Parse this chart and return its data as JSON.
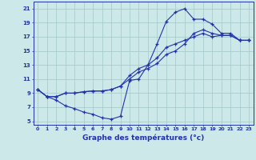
{
  "bg_color": "#cce8e8",
  "grid_color": "#aacccc",
  "line_color": "#2233aa",
  "xlabel": "Graphe des températures (°c)",
  "xlim": [
    -0.5,
    23.5
  ],
  "ylim": [
    4.5,
    22
  ],
  "yticks": [
    5,
    7,
    9,
    11,
    13,
    15,
    17,
    19,
    21
  ],
  "xticks": [
    0,
    1,
    2,
    3,
    4,
    5,
    6,
    7,
    8,
    9,
    10,
    11,
    12,
    13,
    14,
    15,
    16,
    17,
    18,
    19,
    20,
    21,
    22,
    23
  ],
  "series1_x": [
    0,
    1,
    2,
    3,
    4,
    5,
    6,
    7,
    8,
    9,
    10,
    11,
    12,
    13,
    14,
    15,
    16,
    17,
    18,
    19,
    20,
    21,
    22,
    23
  ],
  "series1_y": [
    9.5,
    8.5,
    8.0,
    7.2,
    6.8,
    6.3,
    6.0,
    5.5,
    5.3,
    5.7,
    10.8,
    11.0,
    13.0,
    16.0,
    19.2,
    20.5,
    21.0,
    19.5,
    19.5,
    18.8,
    17.5,
    17.5,
    16.5,
    16.5
  ],
  "series2_x": [
    0,
    1,
    2,
    3,
    4,
    5,
    6,
    7,
    8,
    9,
    10,
    11,
    12,
    13,
    14,
    15,
    16,
    17,
    18,
    19,
    20,
    21,
    22,
    23
  ],
  "series2_y": [
    9.5,
    8.5,
    8.5,
    9.0,
    9.0,
    9.2,
    9.3,
    9.3,
    9.5,
    10.0,
    11.0,
    12.0,
    12.5,
    13.2,
    14.5,
    15.0,
    16.0,
    17.5,
    18.0,
    17.5,
    17.2,
    17.2,
    16.5,
    16.5
  ],
  "series3_x": [
    0,
    1,
    2,
    3,
    4,
    5,
    6,
    7,
    8,
    9,
    10,
    11,
    12,
    13,
    14,
    15,
    16,
    17,
    18,
    19,
    20,
    21,
    22,
    23
  ],
  "series3_y": [
    9.5,
    8.5,
    8.5,
    9.0,
    9.0,
    9.2,
    9.3,
    9.3,
    9.5,
    10.0,
    11.5,
    12.5,
    13.0,
    14.0,
    15.5,
    16.0,
    16.5,
    17.0,
    17.5,
    17.0,
    17.2,
    17.2,
    16.5,
    16.5
  ]
}
